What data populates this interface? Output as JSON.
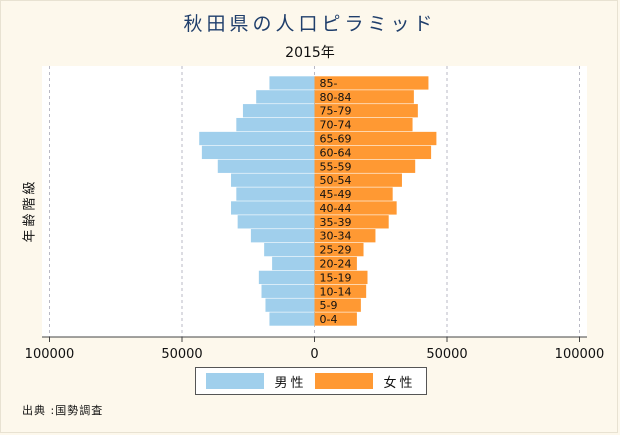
{
  "chart_data": {
    "type": "bar",
    "orientation": "horizontal-pyramid",
    "title": "秋田県の人口ピラミッド",
    "subtitle": "2015年",
    "ylabel": "年齢階級",
    "xlim": [
      -100000,
      100000
    ],
    "xticks": [
      -100000,
      -50000,
      0,
      50000,
      100000
    ],
    "xtick_labels": [
      "100000",
      "50000",
      "0",
      "50000",
      "100000"
    ],
    "grid": "vertical-dashed",
    "legend_position": "bottom",
    "categories": [
      "0-4",
      "5-9",
      "10-14",
      "15-19",
      "20-24",
      "25-29",
      "30-34",
      "35-39",
      "40-44",
      "45-49",
      "50-54",
      "55-59",
      "60-64",
      "65-69",
      "70-74",
      "75-79",
      "80-84",
      "85-"
    ],
    "series": [
      {
        "name": "男性",
        "color": "#a0cfec",
        "values": [
          17000,
          18500,
          20000,
          21000,
          16000,
          19000,
          24000,
          29000,
          31500,
          29500,
          31500,
          36500,
          42500,
          43500,
          29500,
          27000,
          22000,
          17000
        ]
      },
      {
        "name": "女性",
        "color": "#ff9933",
        "values": [
          16000,
          17500,
          19500,
          20000,
          16000,
          18500,
          23000,
          28000,
          31000,
          29500,
          33000,
          38000,
          44000,
          46000,
          37000,
          39000,
          37500,
          43000
        ]
      }
    ],
    "source": "出典 :国勢調査"
  }
}
